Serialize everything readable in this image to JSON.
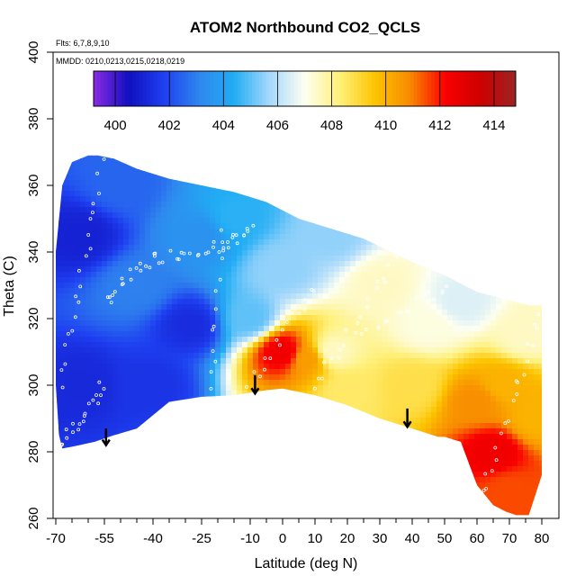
{
  "chart_data": {
    "type": "heatmap",
    "title": "ATOM2 Northbound CO2_QCLS",
    "annotations": [
      "Flts: 6,7,8,9,10",
      "MMDD: 0210,0213,0215,0218,0219"
    ],
    "xlabel": "Latitude (deg N)",
    "ylabel": "Theta (C)",
    "xlim": [
      -70,
      80
    ],
    "ylim": [
      260,
      400
    ],
    "x_ticks": [
      "-70",
      "-55",
      "-40",
      "-25",
      "-10",
      "0",
      "10",
      "20",
      "30",
      "40",
      "50",
      "60",
      "70",
      "80"
    ],
    "x_tick_values": [
      -70,
      -55,
      -40,
      -25,
      -10,
      0,
      10,
      20,
      30,
      40,
      50,
      60,
      70,
      80
    ],
    "x_minor_ticks": [
      -65,
      -60,
      -50,
      -45,
      -35,
      -30,
      -20,
      -15,
      -5,
      5,
      15,
      25,
      35,
      45,
      55,
      65,
      75
    ],
    "y_ticks": [
      "260",
      "280",
      "300",
      "320",
      "340",
      "360",
      "380",
      "400"
    ],
    "y_tick_values": [
      260,
      280,
      300,
      320,
      340,
      360,
      380,
      400
    ],
    "colorbar": {
      "min": 399.2,
      "max": 414.8,
      "ticks": [
        "400",
        "402",
        "404",
        "406",
        "408",
        "410",
        "412",
        "414"
      ],
      "tick_values": [
        400,
        402,
        404,
        406,
        408,
        410,
        412,
        414
      ],
      "stops": [
        "#8a2be2",
        "#1010c0",
        "#1e3ff0",
        "#2f86ee",
        "#21adf4",
        "#a6d8fb",
        "#fdfff2",
        "#fff07a",
        "#fcc400",
        "#f88a00",
        "#fa0000",
        "#cd0000",
        "#9c2424"
      ]
    },
    "domain_outline": [
      [
        -68,
        281
      ],
      [
        -65,
        281.5
      ],
      [
        -58,
        283
      ],
      [
        -52,
        285
      ],
      [
        -45,
        287
      ],
      [
        -35,
        295
      ],
      [
        -25,
        296.5
      ],
      [
        -15,
        297
      ],
      [
        -5,
        298.5
      ],
      [
        0,
        299
      ],
      [
        5,
        298
      ],
      [
        10,
        297
      ],
      [
        20,
        294
      ],
      [
        30,
        290
      ],
      [
        40,
        287
      ],
      [
        48,
        284.5
      ],
      [
        50,
        284.5
      ],
      [
        55,
        283
      ],
      [
        60,
        270
      ],
      [
        65,
        264
      ],
      [
        69,
        262
      ],
      [
        72,
        261
      ],
      [
        76,
        261
      ],
      [
        80,
        273
      ],
      [
        80,
        324
      ],
      [
        76,
        324
      ],
      [
        60,
        328
      ],
      [
        50,
        333
      ],
      [
        40,
        337
      ],
      [
        25,
        344
      ],
      [
        15,
        347
      ],
      [
        5,
        350
      ],
      [
        -5,
        355
      ],
      [
        -15,
        358
      ],
      [
        -25,
        360
      ],
      [
        -35,
        362
      ],
      [
        -45,
        365
      ],
      [
        -52,
        368
      ],
      [
        -57,
        369
      ],
      [
        -60,
        369
      ],
      [
        -65,
        367
      ],
      [
        -68,
        360
      ],
      [
        -70,
        340
      ],
      [
        -70,
        300
      ],
      [
        -69,
        285
      ]
    ],
    "field_anchors": [
      {
        "lat": -62,
        "theta": 345,
        "co2": 401.0
      },
      {
        "lat": -62,
        "theta": 300,
        "co2": 401.2
      },
      {
        "lat": -50,
        "theta": 360,
        "co2": 402.5
      },
      {
        "lat": -45,
        "theta": 330,
        "co2": 403.0
      },
      {
        "lat": -40,
        "theta": 300,
        "co2": 401.5
      },
      {
        "lat": -25,
        "theta": 345,
        "co2": 403.5
      },
      {
        "lat": -28,
        "theta": 318,
        "co2": 401.3
      },
      {
        "lat": -15,
        "theta": 350,
        "co2": 404.5
      },
      {
        "lat": -10,
        "theta": 320,
        "co2": 405.0
      },
      {
        "lat": 0,
        "theta": 335,
        "co2": 405.5
      },
      {
        "lat": 0,
        "theta": 310,
        "co2": 412.5
      },
      {
        "lat": 8,
        "theta": 308,
        "co2": 410.5
      },
      {
        "lat": 15,
        "theta": 310,
        "co2": 407.5
      },
      {
        "lat": 15,
        "theta": 345,
        "co2": 405.5
      },
      {
        "lat": 20,
        "theta": 298,
        "co2": 408.5
      },
      {
        "lat": 30,
        "theta": 330,
        "co2": 407.5
      },
      {
        "lat": 40,
        "theta": 300,
        "co2": 408.8
      },
      {
        "lat": 45,
        "theta": 318,
        "co2": 407.2
      },
      {
        "lat": 55,
        "theta": 325,
        "co2": 406.5
      },
      {
        "lat": 60,
        "theta": 295,
        "co2": 410.8
      },
      {
        "lat": 65,
        "theta": 280,
        "co2": 412.5
      },
      {
        "lat": 68,
        "theta": 300,
        "co2": 410.0
      },
      {
        "lat": 70,
        "theta": 268,
        "co2": 411.5
      },
      {
        "lat": 75,
        "theta": 315,
        "co2": 407.5
      },
      {
        "lat": 78,
        "theta": 290,
        "co2": 410.0
      }
    ],
    "flight_tracks": [
      {
        "lat_start": -68,
        "lat_end": -55,
        "theta_start": 282,
        "theta_end": 300,
        "points": 18
      },
      {
        "lat_start": -68,
        "lat_end": -56,
        "theta_start": 300,
        "theta_end": 366,
        "points": 20
      },
      {
        "lat_start": -55,
        "lat_end": -40,
        "theta_start": 325,
        "theta_end": 338,
        "points": 16
      },
      {
        "lat_start": -40,
        "lat_end": -20,
        "theta_start": 338,
        "theta_end": 342,
        "points": 16
      },
      {
        "lat_start": -22,
        "lat_end": -18,
        "theta_start": 298,
        "theta_end": 345,
        "points": 12
      },
      {
        "lat_start": -20,
        "lat_end": -10,
        "theta_start": 340,
        "theta_end": 347,
        "points": 14
      },
      {
        "lat_start": -10,
        "lat_end": 10,
        "theta_start": 300,
        "theta_end": 330,
        "points": 16
      },
      {
        "lat_start": 10,
        "lat_end": 40,
        "theta_start": 300,
        "theta_end": 345,
        "points": 24
      },
      {
        "lat_start": 25,
        "lat_end": 60,
        "theta_start": 315,
        "theta_end": 335,
        "points": 22
      },
      {
        "lat_start": 60,
        "lat_end": 80,
        "theta_start": 262,
        "theta_end": 322,
        "points": 22
      }
    ],
    "arrows": [
      {
        "lat": -54.5,
        "theta_top": 287,
        "theta_tip": 282
      },
      {
        "lat": -8.5,
        "theta_top": 303,
        "theta_tip": 297.5
      },
      {
        "lat": 38.5,
        "theta_top": 293,
        "theta_tip": 287.5
      }
    ]
  }
}
